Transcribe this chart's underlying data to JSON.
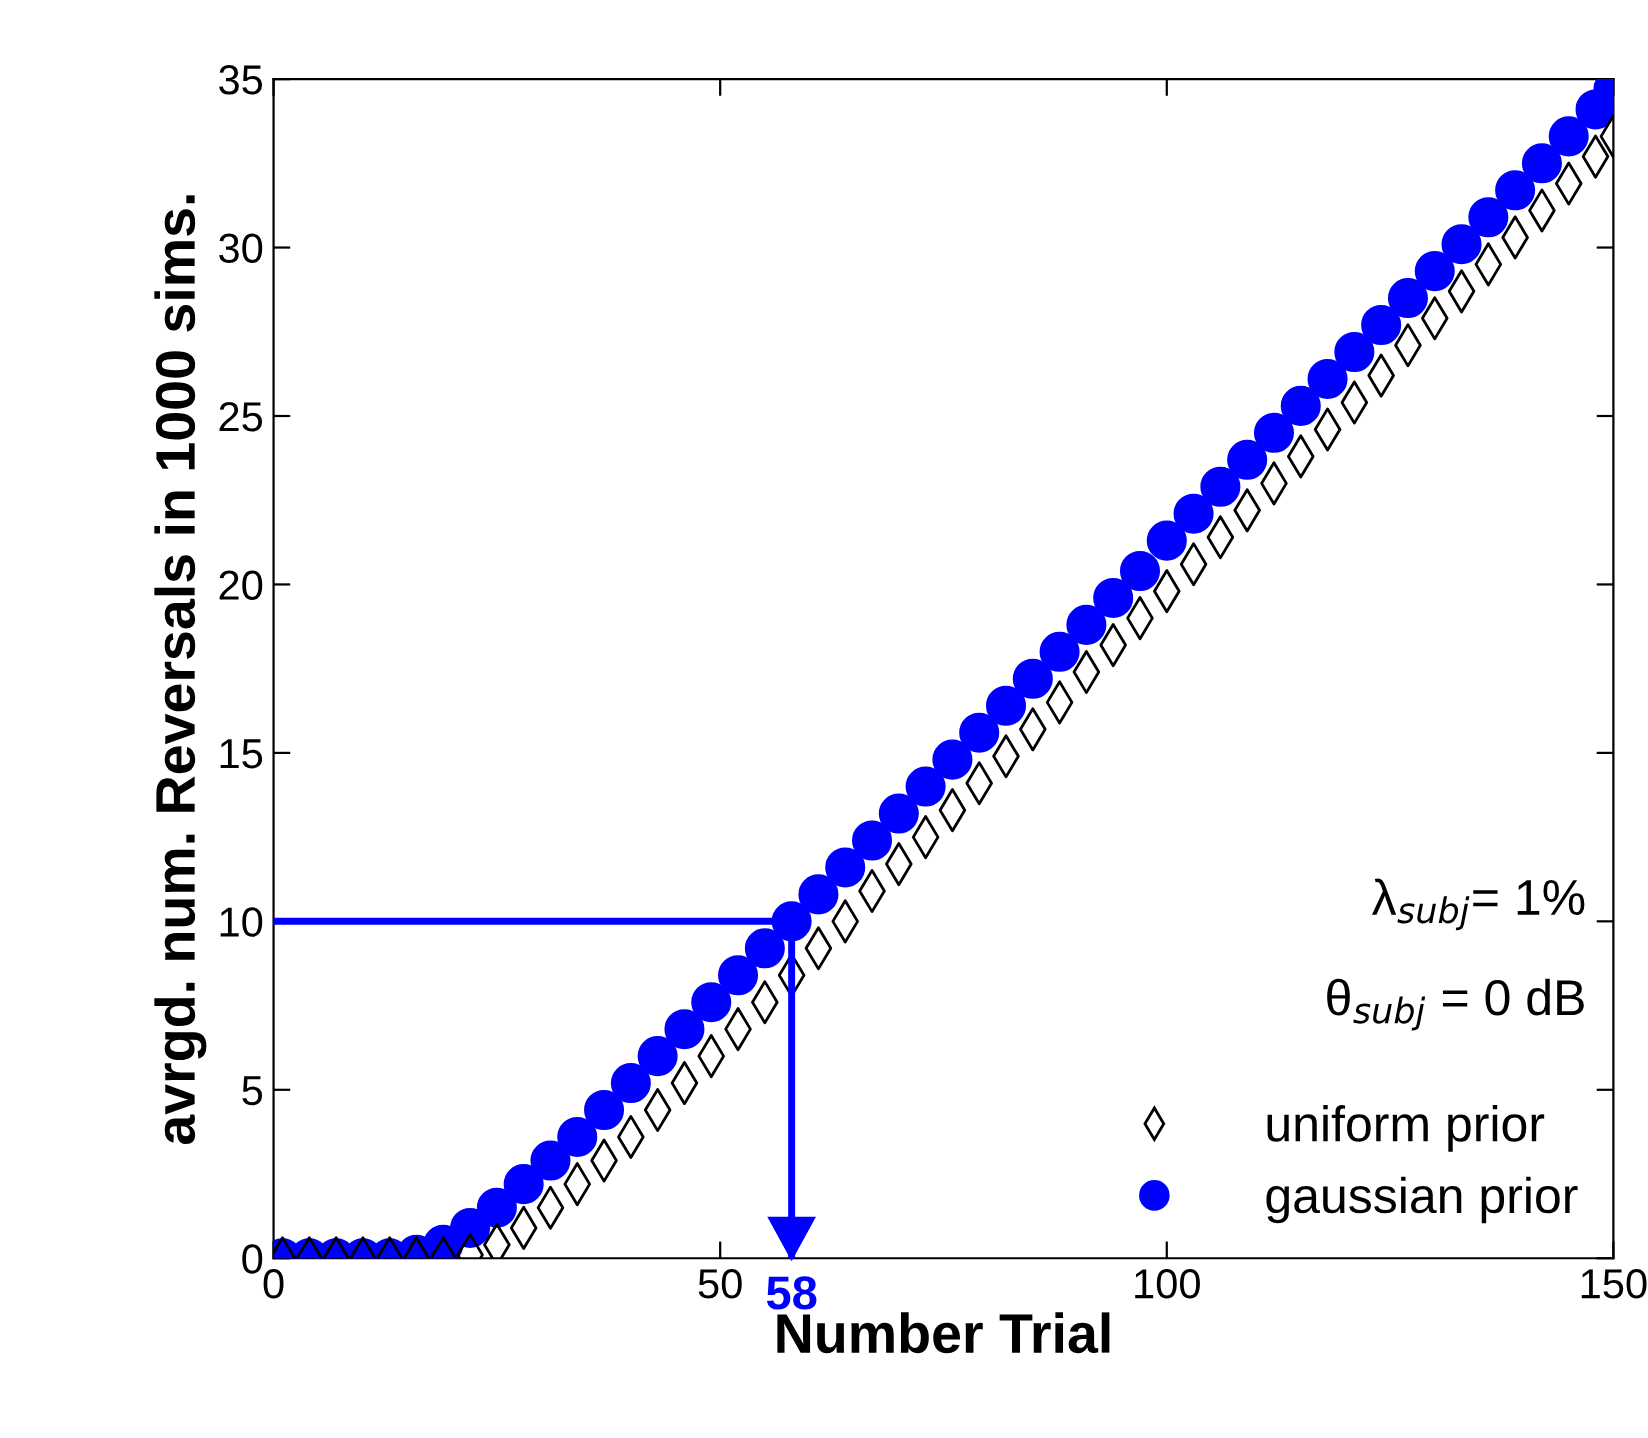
{
  "chart_data": {
    "type": "scatter",
    "xlabel": "Number Trial",
    "ylabel": "avrgd. num. Reversals in 1000 sims.",
    "xlim": [
      0,
      150
    ],
    "xticks": [
      0,
      50,
      100,
      150
    ],
    "ylim": [
      0,
      35
    ],
    "yticks": [
      0,
      5,
      10,
      15,
      20,
      25,
      30,
      35
    ],
    "grid": false,
    "legend": "bottom right",
    "x": [
      1,
      4,
      7,
      10,
      13,
      16,
      19,
      22,
      25,
      28,
      31,
      34,
      37,
      40,
      43,
      46,
      49,
      52,
      55,
      58,
      61,
      64,
      67,
      70,
      73,
      76,
      79,
      82,
      85,
      88,
      91,
      94,
      97,
      100,
      103,
      106,
      109,
      112,
      115,
      118,
      121,
      124,
      127,
      130,
      133,
      136,
      139,
      142,
      145,
      148,
      150
    ],
    "series": [
      {
        "name": "uniform prior",
        "color": "#000000",
        "marker": "diamond",
        "values": [
          0,
          0,
          0,
          0,
          0,
          0,
          0,
          0.1,
          0.4,
          0.9,
          1.5,
          2.2,
          2.9,
          3.6,
          4.4,
          5.2,
          6.0,
          6.8,
          7.6,
          8.4,
          9.2,
          10.0,
          10.9,
          11.7,
          12.5,
          13.3,
          14.1,
          14.9,
          15.7,
          16.5,
          17.4,
          18.2,
          19.0,
          19.8,
          20.6,
          21.4,
          22.2,
          23.0,
          23.8,
          24.6,
          25.4,
          26.2,
          27.1,
          27.9,
          28.7,
          29.5,
          30.3,
          31.1,
          31.9,
          32.7,
          33.3
        ]
      },
      {
        "name": "gaussian prior",
        "color": "#0000ff",
        "marker": "circle",
        "values": [
          0,
          0,
          0,
          0,
          0,
          0.1,
          0.4,
          0.9,
          1.5,
          2.2,
          2.9,
          3.6,
          4.4,
          5.2,
          6.0,
          6.8,
          7.6,
          8.4,
          9.2,
          10.0,
          10.8,
          11.6,
          12.4,
          13.2,
          14.0,
          14.8,
          15.6,
          16.4,
          17.2,
          18.0,
          18.8,
          19.6,
          20.4,
          21.3,
          22.1,
          22.9,
          23.7,
          24.5,
          25.3,
          26.1,
          26.9,
          27.7,
          28.5,
          29.3,
          30.1,
          30.9,
          31.7,
          32.5,
          33.3,
          34.1,
          34.7
        ]
      }
    ],
    "ref_lines": [
      {
        "axis": "y",
        "value": 10,
        "color": "#0000ff"
      },
      {
        "axis": "x",
        "value": 58,
        "label": "58",
        "color": "#0000ff"
      }
    ],
    "annotations": [
      "λ$_{subj}$= 1%",
      "θ$_{subj}$ = 0 dB"
    ]
  }
}
